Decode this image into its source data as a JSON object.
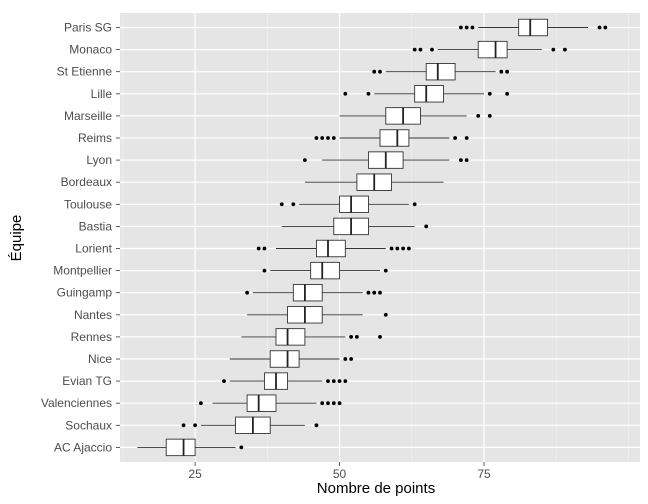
{
  "chart_data": {
    "type": "boxplot",
    "orientation": "horizontal",
    "xlabel": "Nombre de points",
    "ylabel": "Équipe",
    "xlim": [
      12,
      102
    ],
    "xticks": [
      25,
      50,
      75
    ],
    "grid": true,
    "background": "#e5e5e5",
    "grid_color": "#ffffff",
    "box_fill": "#ffffff",
    "box_stroke": "#333333",
    "categories": [
      "Paris SG",
      "Monaco",
      "St Etienne",
      "Lille",
      "Marseille",
      "Reims",
      "Lyon",
      "Bordeaux",
      "Toulouse",
      "Bastia",
      "Lorient",
      "Montpellier",
      "Guingamp",
      "Nantes",
      "Rennes",
      "Nice",
      "Evian TG",
      "Valenciennes",
      "Sochaux",
      "AC Ajaccio"
    ],
    "boxes": [
      {
        "team": "Paris SG",
        "whisker_low": 74,
        "q1": 81,
        "median": 83,
        "q3": 86,
        "whisker_high": 93,
        "outliers": [
          71,
          72,
          73,
          95,
          96
        ]
      },
      {
        "team": "Monaco",
        "whisker_low": 67,
        "q1": 74,
        "median": 77,
        "q3": 79,
        "whisker_high": 85,
        "outliers": [
          63,
          64,
          66,
          87,
          89
        ]
      },
      {
        "team": "St Etienne",
        "whisker_low": 58,
        "q1": 65,
        "median": 67,
        "q3": 70,
        "whisker_high": 77,
        "outliers": [
          56,
          57,
          78,
          79
        ]
      },
      {
        "team": "Lille",
        "whisker_low": 56,
        "q1": 63,
        "median": 65,
        "q3": 68,
        "whisker_high": 75,
        "outliers": [
          51,
          55,
          76,
          79
        ]
      },
      {
        "team": "Marseille",
        "whisker_low": 50,
        "q1": 58,
        "median": 61,
        "q3": 64,
        "whisker_high": 72,
        "outliers": [
          74,
          76
        ]
      },
      {
        "team": "Reims",
        "whisker_low": 50,
        "q1": 57,
        "median": 60,
        "q3": 62,
        "whisker_high": 69,
        "outliers": [
          46,
          47,
          48,
          49,
          70,
          72
        ]
      },
      {
        "team": "Lyon",
        "whisker_low": 47,
        "q1": 55,
        "median": 58,
        "q3": 61,
        "whisker_high": 69,
        "outliers": [
          44,
          71,
          72
        ]
      },
      {
        "team": "Bordeaux",
        "whisker_low": 44,
        "q1": 53,
        "median": 56,
        "q3": 59,
        "whisker_high": 68,
        "outliers": []
      },
      {
        "team": "Toulouse",
        "whisker_low": 43,
        "q1": 50,
        "median": 52,
        "q3": 55,
        "whisker_high": 62,
        "outliers": [
          40,
          42,
          63
        ]
      },
      {
        "team": "Bastia",
        "whisker_low": 40,
        "q1": 49,
        "median": 52,
        "q3": 55,
        "whisker_high": 63,
        "outliers": [
          65
        ]
      },
      {
        "team": "Lorient",
        "whisker_low": 39,
        "q1": 46,
        "median": 48,
        "q3": 51,
        "whisker_high": 58,
        "outliers": [
          36,
          37,
          59,
          60,
          61,
          62
        ]
      },
      {
        "team": "Montpellier",
        "whisker_low": 38,
        "q1": 45,
        "median": 47,
        "q3": 50,
        "whisker_high": 57,
        "outliers": [
          37,
          58
        ]
      },
      {
        "team": "Guingamp",
        "whisker_low": 35,
        "q1": 42,
        "median": 44,
        "q3": 47,
        "whisker_high": 54,
        "outliers": [
          34,
          55,
          56,
          57
        ]
      },
      {
        "team": "Nantes",
        "whisker_low": 34,
        "q1": 41,
        "median": 44,
        "q3": 47,
        "whisker_high": 54,
        "outliers": [
          58
        ]
      },
      {
        "team": "Rennes",
        "whisker_low": 33,
        "q1": 39,
        "median": 41,
        "q3": 44,
        "whisker_high": 51,
        "outliers": [
          52,
          53,
          57
        ]
      },
      {
        "team": "Nice",
        "whisker_low": 31,
        "q1": 38,
        "median": 41,
        "q3": 43,
        "whisker_high": 50,
        "outliers": [
          51,
          52
        ]
      },
      {
        "team": "Evian TG",
        "whisker_low": 31,
        "q1": 37,
        "median": 39,
        "q3": 41,
        "whisker_high": 47,
        "outliers": [
          30,
          48,
          49,
          50,
          51
        ]
      },
      {
        "team": "Valenciennes",
        "whisker_low": 28,
        "q1": 34,
        "median": 36,
        "q3": 39,
        "whisker_high": 46,
        "outliers": [
          26,
          47,
          48,
          49,
          50
        ]
      },
      {
        "team": "Sochaux",
        "whisker_low": 26,
        "q1": 32,
        "median": 35,
        "q3": 38,
        "whisker_high": 44,
        "outliers": [
          23,
          25,
          46
        ]
      },
      {
        "team": "AC Ajaccio",
        "whisker_low": 15,
        "q1": 20,
        "median": 23,
        "q3": 25,
        "whisker_high": 32,
        "outliers": [
          33
        ]
      }
    ]
  }
}
